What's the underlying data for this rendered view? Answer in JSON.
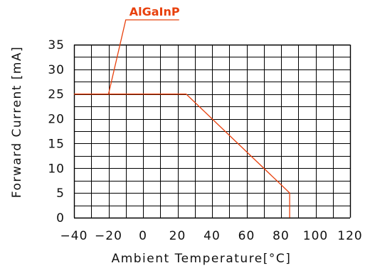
{
  "chart_data": {
    "type": "line",
    "title": "",
    "xlabel": "Ambient Temperature[°C]",
    "ylabel": "Forward Current [mA]",
    "xlim": [
      -40,
      120
    ],
    "ylim": [
      0,
      35
    ],
    "x_ticks": [
      -40,
      -20,
      0,
      20,
      40,
      60,
      80,
      100,
      120
    ],
    "x_tick_labels": [
      "−40",
      "−20",
      "0",
      "20",
      "40",
      "60",
      "80",
      "100",
      "120"
    ],
    "y_ticks": [
      0,
      5,
      10,
      15,
      20,
      25,
      30,
      35
    ],
    "y_tick_labels": [
      "0",
      "5",
      "10",
      "15",
      "20",
      "25",
      "30",
      "35"
    ],
    "grid": true,
    "series": [
      {
        "name": "AlGaInP",
        "color": "#e8400c",
        "x": [
          -40,
          25,
          85,
          85
        ],
        "y": [
          25,
          25,
          5,
          0
        ]
      }
    ]
  }
}
